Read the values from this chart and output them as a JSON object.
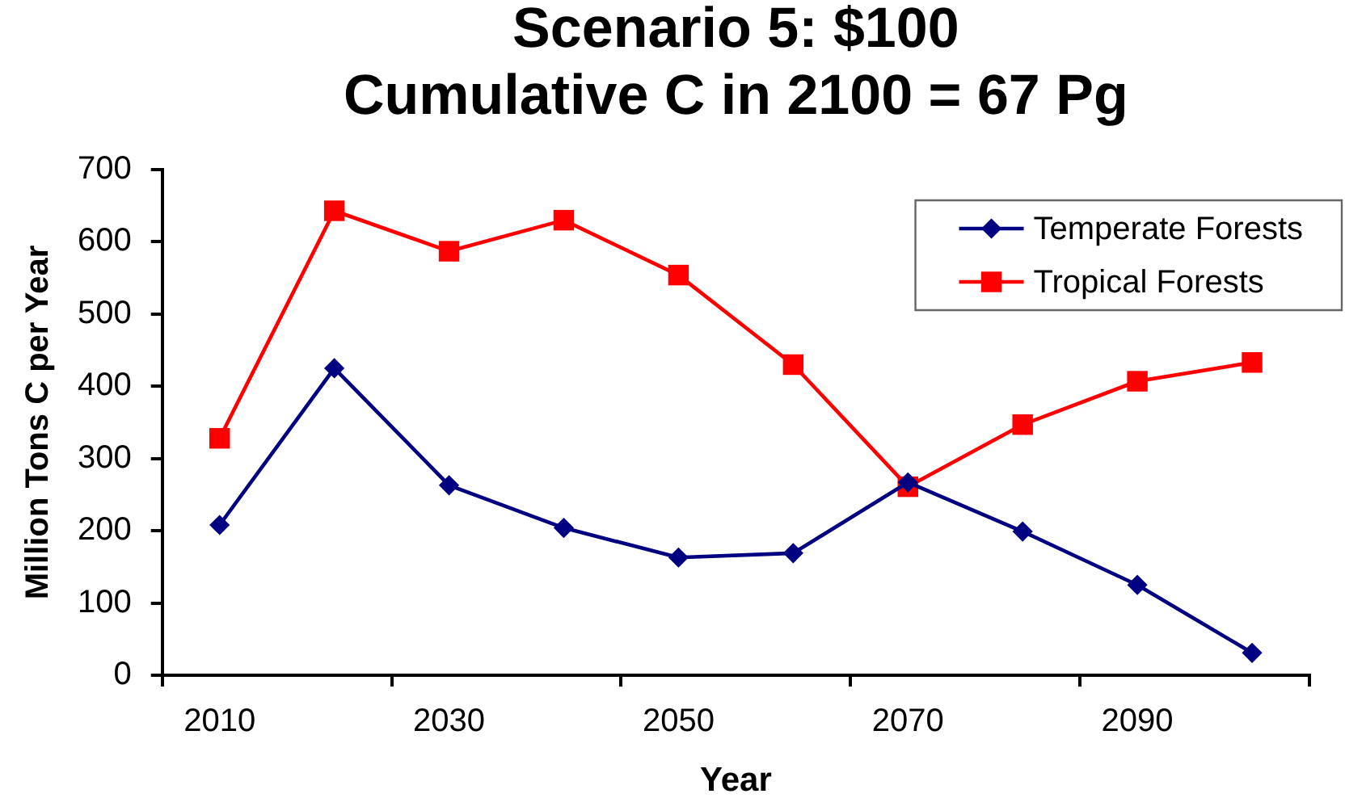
{
  "chart_data": {
    "type": "line",
    "title": "Scenario 5: $100",
    "subtitle": "Cumulative C in 2100 = 67 Pg",
    "xlabel": "Year",
    "ylabel": "Million Tons C per Year",
    "categories": [
      "2010",
      null,
      "2030",
      null,
      "2050",
      null,
      "2070",
      null,
      "2090",
      null
    ],
    "series": [
      {
        "name": "Temperate Forests",
        "color": "#000080",
        "marker": "diamond",
        "values": [
          208,
          425,
          263,
          204,
          163,
          169,
          267,
          199,
          125,
          31
        ]
      },
      {
        "name": "Tropical Forests",
        "color": "#ff0000",
        "marker": "square",
        "values": [
          328,
          643,
          587,
          630,
          554,
          430,
          261,
          347,
          407,
          433
        ]
      }
    ],
    "ylim": [
      0,
      700
    ],
    "yticks": [
      0,
      100,
      200,
      300,
      400,
      500,
      600,
      700
    ],
    "grid": false,
    "legend": "top right",
    "line_style": "solid"
  }
}
